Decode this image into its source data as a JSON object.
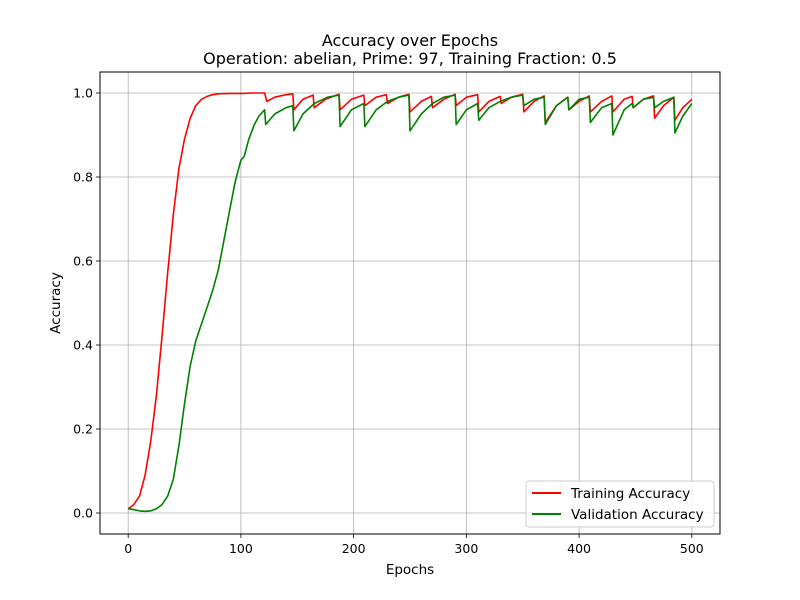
{
  "chart_data": {
    "type": "line",
    "title": "Accuracy over Epochs",
    "subtitle": "Operation: abelian, Prime: 97, Training Fraction: 0.5",
    "xlabel": "Epochs",
    "ylabel": "Accuracy",
    "xlim": [
      -25,
      525
    ],
    "ylim": [
      -0.05,
      1.05
    ],
    "xticks": [
      0,
      100,
      200,
      300,
      400,
      500
    ],
    "yticks": [
      0.0,
      0.2,
      0.4,
      0.6,
      0.8,
      1.0
    ],
    "xtick_labels": [
      "0",
      "100",
      "200",
      "300",
      "400",
      "500"
    ],
    "ytick_labels": [
      "0.0",
      "0.2",
      "0.4",
      "0.6",
      "0.8",
      "1.0"
    ],
    "grid": true,
    "legend_position": "bottom-right",
    "series": [
      {
        "name": "Training Accuracy",
        "color": "#ff0000",
        "points": [
          [
            0,
            0.01
          ],
          [
            5,
            0.02
          ],
          [
            10,
            0.04
          ],
          [
            15,
            0.09
          ],
          [
            20,
            0.17
          ],
          [
            25,
            0.28
          ],
          [
            30,
            0.42
          ],
          [
            35,
            0.57
          ],
          [
            40,
            0.71
          ],
          [
            45,
            0.82
          ],
          [
            50,
            0.89
          ],
          [
            55,
            0.94
          ],
          [
            60,
            0.97
          ],
          [
            65,
            0.985
          ],
          [
            70,
            0.992
          ],
          [
            75,
            0.996
          ],
          [
            80,
            0.998
          ],
          [
            90,
            0.999
          ],
          [
            100,
            0.999
          ],
          [
            110,
            1.0
          ],
          [
            121,
            1.0
          ],
          [
            123,
            0.98
          ],
          [
            130,
            0.99
          ],
          [
            140,
            0.996
          ],
          [
            146,
            0.998
          ],
          [
            147,
            0.96
          ],
          [
            155,
            0.985
          ],
          [
            164,
            0.995
          ],
          [
            165,
            0.965
          ],
          [
            175,
            0.985
          ],
          [
            187,
            0.997
          ],
          [
            188,
            0.96
          ],
          [
            198,
            0.985
          ],
          [
            209,
            0.995
          ],
          [
            210,
            0.97
          ],
          [
            220,
            0.99
          ],
          [
            229,
            0.996
          ],
          [
            230,
            0.975
          ],
          [
            240,
            0.99
          ],
          [
            249,
            0.997
          ],
          [
            250,
            0.955
          ],
          [
            260,
            0.98
          ],
          [
            269,
            0.992
          ],
          [
            270,
            0.965
          ],
          [
            280,
            0.985
          ],
          [
            290,
            0.997
          ],
          [
            291,
            0.97
          ],
          [
            300,
            0.99
          ],
          [
            310,
            0.996
          ],
          [
            311,
            0.955
          ],
          [
            320,
            0.98
          ],
          [
            330,
            0.992
          ],
          [
            331,
            0.975
          ],
          [
            340,
            0.99
          ],
          [
            350,
            0.997
          ],
          [
            351,
            0.955
          ],
          [
            360,
            0.98
          ],
          [
            369,
            0.993
          ],
          [
            370,
            0.93
          ],
          [
            380,
            0.97
          ],
          [
            390,
            0.99
          ],
          [
            391,
            0.96
          ],
          [
            400,
            0.98
          ],
          [
            409,
            0.993
          ],
          [
            410,
            0.955
          ],
          [
            420,
            0.98
          ],
          [
            429,
            0.993
          ],
          [
            430,
            0.955
          ],
          [
            440,
            0.985
          ],
          [
            447,
            0.992
          ],
          [
            448,
            0.965
          ],
          [
            457,
            0.985
          ],
          [
            466,
            0.993
          ],
          [
            467,
            0.94
          ],
          [
            475,
            0.97
          ],
          [
            484,
            0.99
          ],
          [
            485,
            0.935
          ],
          [
            492,
            0.965
          ],
          [
            500,
            0.985
          ]
        ]
      },
      {
        "name": "Validation Accuracy",
        "color": "#008000",
        "points": [
          [
            0,
            0.01
          ],
          [
            5,
            0.008
          ],
          [
            10,
            0.005
          ],
          [
            15,
            0.004
          ],
          [
            20,
            0.005
          ],
          [
            25,
            0.01
          ],
          [
            30,
            0.02
          ],
          [
            35,
            0.04
          ],
          [
            40,
            0.08
          ],
          [
            45,
            0.16
          ],
          [
            50,
            0.26
          ],
          [
            55,
            0.35
          ],
          [
            60,
            0.41
          ],
          [
            65,
            0.45
          ],
          [
            70,
            0.49
          ],
          [
            75,
            0.53
          ],
          [
            80,
            0.58
          ],
          [
            85,
            0.65
          ],
          [
            90,
            0.72
          ],
          [
            95,
            0.79
          ],
          [
            100,
            0.84
          ],
          [
            103,
            0.85
          ],
          [
            107,
            0.89
          ],
          [
            112,
            0.925
          ],
          [
            116,
            0.945
          ],
          [
            121,
            0.96
          ],
          [
            122,
            0.925
          ],
          [
            130,
            0.95
          ],
          [
            140,
            0.965
          ],
          [
            146,
            0.97
          ],
          [
            147,
            0.91
          ],
          [
            155,
            0.95
          ],
          [
            165,
            0.975
          ],
          [
            177,
            0.99
          ],
          [
            187,
            0.995
          ],
          [
            188,
            0.92
          ],
          [
            198,
            0.96
          ],
          [
            209,
            0.975
          ],
          [
            210,
            0.92
          ],
          [
            220,
            0.96
          ],
          [
            230,
            0.98
          ],
          [
            240,
            0.99
          ],
          [
            249,
            0.995
          ],
          [
            250,
            0.91
          ],
          [
            260,
            0.95
          ],
          [
            270,
            0.975
          ],
          [
            280,
            0.99
          ],
          [
            290,
            0.995
          ],
          [
            291,
            0.925
          ],
          [
            300,
            0.96
          ],
          [
            310,
            0.975
          ],
          [
            311,
            0.935
          ],
          [
            320,
            0.965
          ],
          [
            330,
            0.98
          ],
          [
            340,
            0.99
          ],
          [
            350,
            0.995
          ],
          [
            351,
            0.97
          ],
          [
            360,
            0.985
          ],
          [
            369,
            0.99
          ],
          [
            370,
            0.925
          ],
          [
            380,
            0.97
          ],
          [
            390,
            0.99
          ],
          [
            391,
            0.96
          ],
          [
            400,
            0.985
          ],
          [
            409,
            0.99
          ],
          [
            410,
            0.93
          ],
          [
            420,
            0.965
          ],
          [
            429,
            0.975
          ],
          [
            430,
            0.9
          ],
          [
            440,
            0.96
          ],
          [
            447,
            0.975
          ],
          [
            448,
            0.965
          ],
          [
            457,
            0.985
          ],
          [
            466,
            0.99
          ],
          [
            467,
            0.965
          ],
          [
            475,
            0.98
          ],
          [
            484,
            0.99
          ],
          [
            485,
            0.905
          ],
          [
            492,
            0.945
          ],
          [
            500,
            0.975
          ]
        ]
      }
    ]
  }
}
